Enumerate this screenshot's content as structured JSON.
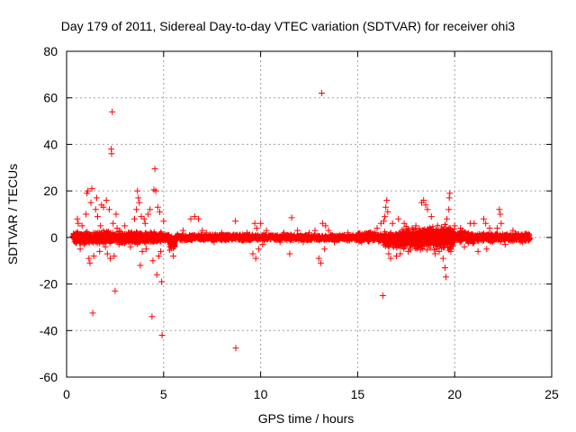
{
  "chart_data": {
    "type": "scatter",
    "title": "Day 179 of 2011, Sidereal Day-to-day VTEC variation (SDTVAR) for receiver ohi3",
    "xlabel": "GPS time / hours",
    "ylabel": "SDTVAR / TECUs",
    "xlim": [
      0,
      25
    ],
    "ylim": [
      -60,
      80
    ],
    "xticks": [
      "0",
      "5",
      "10",
      "15",
      "20",
      "25"
    ],
    "xtick_values": [
      0,
      5,
      10,
      15,
      20,
      25
    ],
    "yticks": [
      "-60",
      "-40",
      "-20",
      "0",
      "20",
      "40",
      "60",
      "80"
    ],
    "ytick_values": [
      -60,
      -40,
      -20,
      0,
      20,
      40,
      60,
      80
    ],
    "grid": true,
    "marker": "+",
    "color": "#ff0000",
    "dense_band": {
      "x_range": [
        0.3,
        23.9
      ],
      "segments": [
        {
          "x": [
            0.3,
            4.9
          ],
          "y": [
            -3,
            3
          ]
        },
        {
          "x": [
            4.9,
            5.3
          ],
          "y": [
            -2,
            2
          ]
        },
        {
          "x": [
            5.3,
            5.6
          ],
          "y": [
            -6,
            1
          ]
        },
        {
          "x": [
            5.6,
            15.0
          ],
          "y": [
            -1.5,
            1.5
          ]
        },
        {
          "x": [
            15.0,
            16.3
          ],
          "y": [
            -2,
            2.5
          ]
        },
        {
          "x": [
            16.3,
            17.2
          ],
          "y": [
            -5,
            3
          ]
        },
        {
          "x": [
            17.2,
            18.4
          ],
          "y": [
            -6,
            5
          ]
        },
        {
          "x": [
            18.4,
            20.0
          ],
          "y": [
            -6,
            6
          ]
        },
        {
          "x": [
            20.0,
            21.0
          ],
          "y": [
            -3,
            3
          ]
        },
        {
          "x": [
            21.0,
            23.9
          ],
          "y": [
            -2,
            2
          ]
        }
      ]
    },
    "points": [
      {
        "x": 0.55,
        "y": 8
      },
      {
        "x": 0.6,
        "y": 6
      },
      {
        "x": 0.7,
        "y": -5
      },
      {
        "x": 0.8,
        "y": 5
      },
      {
        "x": 0.9,
        "y": -3
      },
      {
        "x": 1.0,
        "y": 10
      },
      {
        "x": 1.05,
        "y": 19
      },
      {
        "x": 1.1,
        "y": 20
      },
      {
        "x": 1.15,
        "y": -9
      },
      {
        "x": 1.2,
        "y": -11
      },
      {
        "x": 1.25,
        "y": 15
      },
      {
        "x": 1.3,
        "y": 21
      },
      {
        "x": 1.35,
        "y": -32.5
      },
      {
        "x": 1.4,
        "y": -8
      },
      {
        "x": 1.5,
        "y": 12
      },
      {
        "x": 1.55,
        "y": 17
      },
      {
        "x": 1.6,
        "y": 9
      },
      {
        "x": 1.7,
        "y": -6
      },
      {
        "x": 1.75,
        "y": 5
      },
      {
        "x": 1.8,
        "y": 14
      },
      {
        "x": 1.9,
        "y": 13
      },
      {
        "x": 2.0,
        "y": -4
      },
      {
        "x": 2.05,
        "y": 16
      },
      {
        "x": 2.1,
        "y": -7
      },
      {
        "x": 2.2,
        "y": 12
      },
      {
        "x": 2.25,
        "y": -9
      },
      {
        "x": 2.3,
        "y": 38
      },
      {
        "x": 2.32,
        "y": 36
      },
      {
        "x": 2.35,
        "y": 54
      },
      {
        "x": 2.4,
        "y": 6
      },
      {
        "x": 2.45,
        "y": -8
      },
      {
        "x": 2.5,
        "y": -23
      },
      {
        "x": 2.55,
        "y": 10
      },
      {
        "x": 2.6,
        "y": 4
      },
      {
        "x": 2.7,
        "y": -3
      },
      {
        "x": 3.0,
        "y": 5
      },
      {
        "x": 3.3,
        "y": -4
      },
      {
        "x": 3.5,
        "y": 8
      },
      {
        "x": 3.6,
        "y": 12
      },
      {
        "x": 3.65,
        "y": 20
      },
      {
        "x": 3.7,
        "y": 17
      },
      {
        "x": 3.75,
        "y": 15
      },
      {
        "x": 3.8,
        "y": -12
      },
      {
        "x": 3.85,
        "y": 9
      },
      {
        "x": 3.9,
        "y": -6
      },
      {
        "x": 4.0,
        "y": 8
      },
      {
        "x": 4.05,
        "y": 6
      },
      {
        "x": 4.1,
        "y": -5
      },
      {
        "x": 4.2,
        "y": 10
      },
      {
        "x": 4.3,
        "y": 12
      },
      {
        "x": 4.4,
        "y": -34
      },
      {
        "x": 4.45,
        "y": -10
      },
      {
        "x": 4.5,
        "y": 20.5
      },
      {
        "x": 4.55,
        "y": 29.5
      },
      {
        "x": 4.6,
        "y": 20
      },
      {
        "x": 4.65,
        "y": -16
      },
      {
        "x": 4.7,
        "y": 13
      },
      {
        "x": 4.75,
        "y": -8
      },
      {
        "x": 4.8,
        "y": 11
      },
      {
        "x": 4.85,
        "y": -6
      },
      {
        "x": 4.9,
        "y": -19
      },
      {
        "x": 4.92,
        "y": -42
      },
      {
        "x": 5.0,
        "y": 7
      },
      {
        "x": 5.5,
        "y": -8
      },
      {
        "x": 6.0,
        "y": 3
      },
      {
        "x": 6.4,
        "y": 8
      },
      {
        "x": 6.6,
        "y": 9
      },
      {
        "x": 6.8,
        "y": 8
      },
      {
        "x": 7.0,
        "y": 3
      },
      {
        "x": 7.2,
        "y": 2
      },
      {
        "x": 7.6,
        "y": -2
      },
      {
        "x": 8.0,
        "y": 2
      },
      {
        "x": 8.7,
        "y": 7
      },
      {
        "x": 8.72,
        "y": -47.5
      },
      {
        "x": 9.0,
        "y": -1
      },
      {
        "x": 9.3,
        "y": 2
      },
      {
        "x": 9.6,
        "y": -7
      },
      {
        "x": 9.7,
        "y": 6
      },
      {
        "x": 9.75,
        "y": -9
      },
      {
        "x": 9.8,
        "y": 4
      },
      {
        "x": 9.9,
        "y": -5
      },
      {
        "x": 10.0,
        "y": 6
      },
      {
        "x": 10.1,
        "y": -3
      },
      {
        "x": 10.3,
        "y": 3
      },
      {
        "x": 11.0,
        "y": -2
      },
      {
        "x": 11.2,
        "y": 2
      },
      {
        "x": 11.5,
        "y": -7
      },
      {
        "x": 11.6,
        "y": 8.5
      },
      {
        "x": 11.9,
        "y": 3
      },
      {
        "x": 12.2,
        "y": -2
      },
      {
        "x": 12.5,
        "y": 2
      },
      {
        "x": 12.8,
        "y": 3
      },
      {
        "x": 13.0,
        "y": -9
      },
      {
        "x": 13.1,
        "y": -11
      },
      {
        "x": 13.15,
        "y": 62
      },
      {
        "x": 13.2,
        "y": 6
      },
      {
        "x": 13.3,
        "y": -5
      },
      {
        "x": 13.35,
        "y": 5
      },
      {
        "x": 13.5,
        "y": 3
      },
      {
        "x": 13.8,
        "y": -2
      },
      {
        "x": 14.5,
        "y": 2
      },
      {
        "x": 15.2,
        "y": -2
      },
      {
        "x": 16.0,
        "y": 4
      },
      {
        "x": 16.2,
        "y": 6
      },
      {
        "x": 16.3,
        "y": -25
      },
      {
        "x": 16.35,
        "y": 7
      },
      {
        "x": 16.4,
        "y": 9
      },
      {
        "x": 16.45,
        "y": 13
      },
      {
        "x": 16.5,
        "y": 16
      },
      {
        "x": 16.55,
        "y": 11
      },
      {
        "x": 16.6,
        "y": -7
      },
      {
        "x": 16.7,
        "y": -9
      },
      {
        "x": 16.8,
        "y": 6
      },
      {
        "x": 17.0,
        "y": -8
      },
      {
        "x": 17.1,
        "y": 8
      },
      {
        "x": 17.2,
        "y": -7
      },
      {
        "x": 17.4,
        "y": 6
      },
      {
        "x": 17.6,
        "y": -6
      },
      {
        "x": 18.0,
        "y": 5
      },
      {
        "x": 18.3,
        "y": 15
      },
      {
        "x": 18.4,
        "y": 16
      },
      {
        "x": 18.5,
        "y": 14
      },
      {
        "x": 18.6,
        "y": 12
      },
      {
        "x": 18.8,
        "y": 9
      },
      {
        "x": 19.0,
        "y": -7
      },
      {
        "x": 19.2,
        "y": -6
      },
      {
        "x": 19.4,
        "y": -9
      },
      {
        "x": 19.5,
        "y": -13
      },
      {
        "x": 19.55,
        "y": -17
      },
      {
        "x": 19.6,
        "y": 8
      },
      {
        "x": 19.7,
        "y": 12
      },
      {
        "x": 19.72,
        "y": 17
      },
      {
        "x": 19.75,
        "y": 19
      },
      {
        "x": 19.8,
        "y": -6
      },
      {
        "x": 20.0,
        "y": 5
      },
      {
        "x": 20.3,
        "y": 4
      },
      {
        "x": 20.5,
        "y": -4
      },
      {
        "x": 20.8,
        "y": 6
      },
      {
        "x": 21.0,
        "y": 6
      },
      {
        "x": 21.2,
        "y": -6
      },
      {
        "x": 21.5,
        "y": 8
      },
      {
        "x": 21.6,
        "y": 6
      },
      {
        "x": 21.65,
        "y": -5
      },
      {
        "x": 21.8,
        "y": 4
      },
      {
        "x": 22.2,
        "y": 4
      },
      {
        "x": 22.3,
        "y": 12
      },
      {
        "x": 22.35,
        "y": 10
      },
      {
        "x": 22.4,
        "y": 6
      },
      {
        "x": 22.6,
        "y": -3
      },
      {
        "x": 23.0,
        "y": 3
      },
      {
        "x": 23.5,
        "y": -2
      }
    ]
  }
}
